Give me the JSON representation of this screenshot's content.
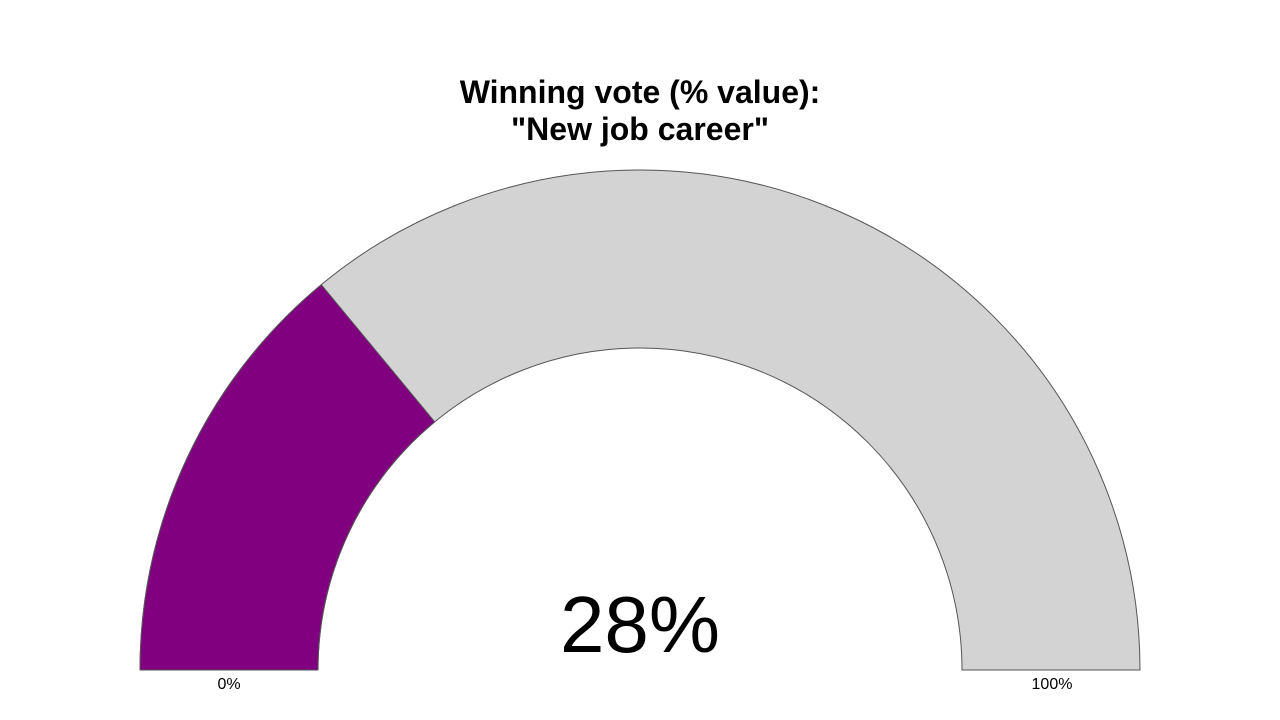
{
  "chart_data": {
    "type": "gauge",
    "title_lines": [
      "Winning vote (% value):",
      "\"New job career\""
    ],
    "value": 28,
    "value_label": "28%",
    "min": 0,
    "max": 100,
    "min_label": "0%",
    "max_label": "100%",
    "colors": {
      "fill": "#800080",
      "track": "#d3d3d3",
      "stroke": "#555555"
    }
  }
}
